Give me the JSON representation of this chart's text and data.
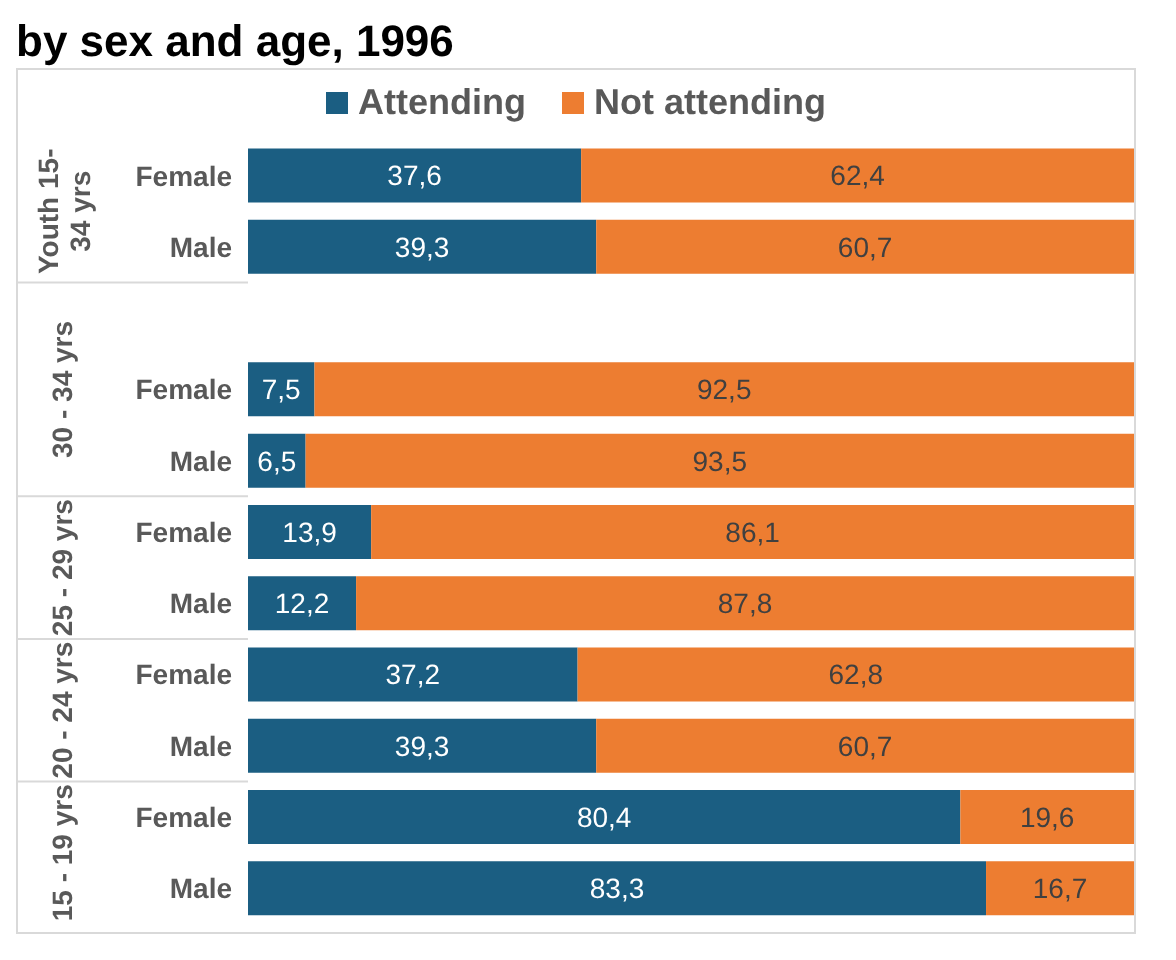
{
  "chart_data": {
    "type": "bar",
    "orientation": "horizontal",
    "stacked": true,
    "title": "by sex and age, 1996",
    "categories": [
      "Female",
      "Male",
      null,
      "Female",
      "Male",
      "Female",
      "Male",
      "Female",
      "Male",
      "Female",
      "Male"
    ],
    "annotations": [
      "Youth 15-34 yrs",
      "30 - 34 yrs",
      "25 - 29 yrs",
      "20 - 24 yrs",
      "15 - 19 yrs"
    ],
    "series": [
      {
        "name": "Attending",
        "color": "#1b5e82",
        "values": [
          37.6,
          39.3,
          null,
          7.5,
          6.5,
          13.9,
          12.2,
          37.2,
          39.3,
          80.4,
          83.3
        ],
        "value_labels": [
          "37,6",
          "39,3",
          null,
          "7,5",
          "6,5",
          "13,9",
          "12,2",
          "37,2",
          "39,3",
          "80,4",
          "83,3"
        ]
      },
      {
        "name": "Not attending",
        "color": "#ed7d31",
        "values": [
          62.4,
          60.7,
          null,
          92.5,
          93.5,
          86.1,
          87.8,
          62.8,
          60.7,
          19.6,
          16.7
        ],
        "value_labels": [
          "62,4",
          "60,7",
          null,
          "92,5",
          "93,5",
          "86,1",
          "87,8",
          "62,8",
          "60,7",
          "19,6",
          "16,7"
        ]
      }
    ],
    "legend": "top"
  }
}
